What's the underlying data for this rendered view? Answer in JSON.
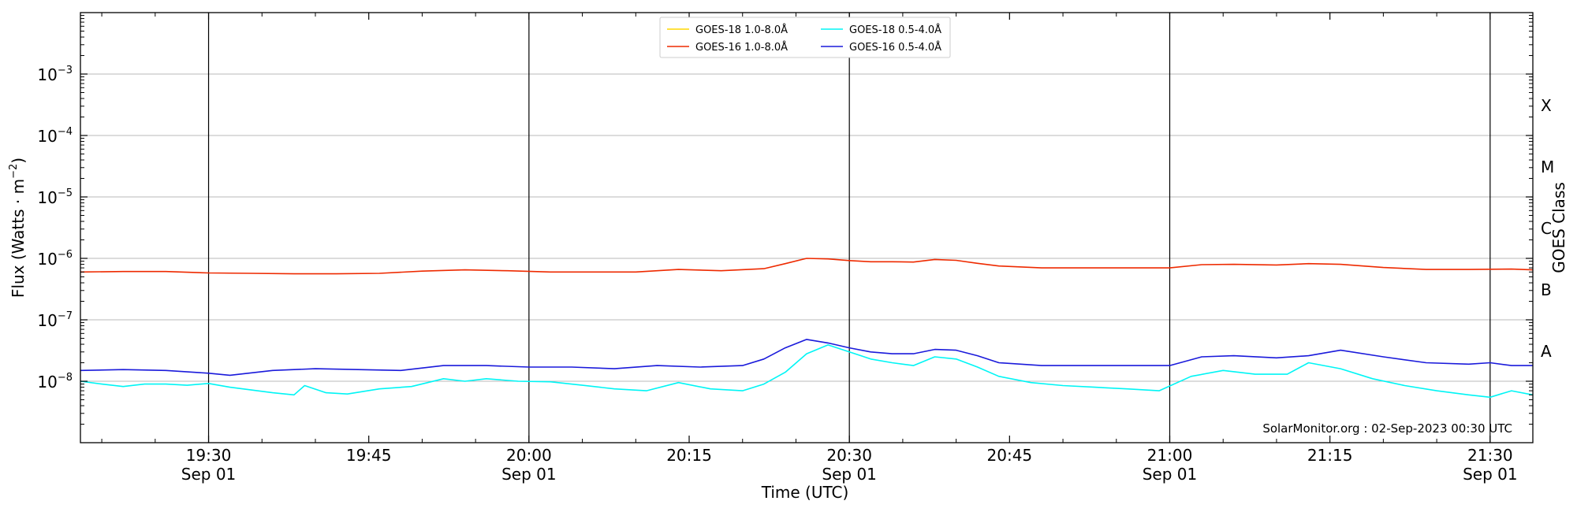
{
  "chart_data": {
    "type": "line",
    "title": "",
    "xlabel": "Time (UTC)",
    "ylabel": "Flux (Watts · m",
    "ylabel_exponent": "−2",
    "y2label": "GOES Class",
    "y_scale": "log",
    "ylim": [
      1e-09,
      0.01
    ],
    "xlim": [
      "2023-09-01 19:18",
      "2023-09-01 21:34"
    ],
    "x_ticks": [
      {
        "time": "2023-09-01 19:30",
        "line1": "19:30",
        "line2": "Sep 01",
        "major": true
      },
      {
        "time": "2023-09-01 19:45",
        "line1": "19:45",
        "line2": "",
        "major": false
      },
      {
        "time": "2023-09-01 20:00",
        "line1": "20:00",
        "line2": "Sep 01",
        "major": true
      },
      {
        "time": "2023-09-01 20:15",
        "line1": "20:15",
        "line2": "",
        "major": false
      },
      {
        "time": "2023-09-01 20:30",
        "line1": "20:30",
        "line2": "Sep 01",
        "major": true
      },
      {
        "time": "2023-09-01 20:45",
        "line1": "20:45",
        "line2": "",
        "major": false
      },
      {
        "time": "2023-09-01 21:00",
        "line1": "21:00",
        "line2": "Sep 01",
        "major": true
      },
      {
        "time": "2023-09-01 21:15",
        "line1": "21:15",
        "line2": "",
        "major": false
      },
      {
        "time": "2023-09-01 21:30",
        "line1": "21:30",
        "line2": "Sep 01",
        "major": true
      }
    ],
    "y_ticks": [
      {
        "value": 1e-08,
        "base": "10",
        "exp": "−8"
      },
      {
        "value": 1e-07,
        "base": "10",
        "exp": "−7"
      },
      {
        "value": 1e-06,
        "base": "10",
        "exp": "−6"
      },
      {
        "value": 1e-05,
        "base": "10",
        "exp": "−5"
      },
      {
        "value": 0.0001,
        "base": "10",
        "exp": "−4"
      },
      {
        "value": 0.001,
        "base": "10",
        "exp": "−3"
      }
    ],
    "goes_classes": [
      {
        "label": "A",
        "value": 1e-08
      },
      {
        "label": "B",
        "value": 1e-07
      },
      {
        "label": "C",
        "value": 1e-06
      },
      {
        "label": "M",
        "value": 1e-05
      },
      {
        "label": "X",
        "value": 0.0001
      }
    ],
    "grid": true,
    "legend_position": "top-center",
    "annotation": "SolarMonitor.org : 02-Sep-2023 00:30 UTC",
    "series": [
      {
        "name": "GOES-18 1.0-8.0Å",
        "color": "#ffd700",
        "x": [],
        "y": []
      },
      {
        "name": "GOES-16 1.0-8.0Å",
        "color": "#ee2a00",
        "x": [
          "2023-09-01 19:18",
          "2023-09-01 19:22",
          "2023-09-01 19:26",
          "2023-09-01 19:30",
          "2023-09-01 19:34",
          "2023-09-01 19:38",
          "2023-09-01 19:42",
          "2023-09-01 19:46",
          "2023-09-01 19:50",
          "2023-09-01 19:54",
          "2023-09-01 19:58",
          "2023-09-01 20:02",
          "2023-09-01 20:06",
          "2023-09-01 20:10",
          "2023-09-01 20:14",
          "2023-09-01 20:18",
          "2023-09-01 20:22",
          "2023-09-01 20:24",
          "2023-09-01 20:26",
          "2023-09-01 20:28",
          "2023-09-01 20:30",
          "2023-09-01 20:32",
          "2023-09-01 20:34",
          "2023-09-01 20:36",
          "2023-09-01 20:38",
          "2023-09-01 20:40",
          "2023-09-01 20:42",
          "2023-09-01 20:44",
          "2023-09-01 20:48",
          "2023-09-01 20:52",
          "2023-09-01 20:56",
          "2023-09-01 21:00",
          "2023-09-01 21:03",
          "2023-09-01 21:06",
          "2023-09-01 21:10",
          "2023-09-01 21:13",
          "2023-09-01 21:16",
          "2023-09-01 21:20",
          "2023-09-01 21:24",
          "2023-09-01 21:28",
          "2023-09-01 21:32",
          "2023-09-01 21:34"
        ],
        "y": [
          6e-07,
          6.1e-07,
          6.1e-07,
          5.8e-07,
          5.7e-07,
          5.6e-07,
          5.6e-07,
          5.7e-07,
          6.2e-07,
          6.5e-07,
          6.3e-07,
          6e-07,
          6e-07,
          6e-07,
          6.6e-07,
          6.3e-07,
          6.8e-07,
          8.2e-07,
          1e-06,
          9.8e-07,
          9.2e-07,
          8.8e-07,
          8.8e-07,
          8.7e-07,
          9.6e-07,
          9.3e-07,
          8.3e-07,
          7.5e-07,
          7e-07,
          7e-07,
          7e-07,
          7e-07,
          7.9e-07,
          8e-07,
          7.8e-07,
          8.2e-07,
          8e-07,
          7.1e-07,
          6.6e-07,
          6.6e-07,
          6.7e-07,
          6.5e-07
        ]
      },
      {
        "name": "GOES-18 0.5-4.0Å",
        "color": "#00f5f5",
        "x": [
          "2023-09-01 19:18",
          "2023-09-01 19:20",
          "2023-09-01 19:22",
          "2023-09-01 19:24",
          "2023-09-01 19:26",
          "2023-09-01 19:28",
          "2023-09-01 19:30",
          "2023-09-01 19:32",
          "2023-09-01 19:34",
          "2023-09-01 19:36",
          "2023-09-01 19:38",
          "2023-09-01 19:39",
          "2023-09-01 19:41",
          "2023-09-01 19:43",
          "2023-09-01 19:46",
          "2023-09-01 19:49",
          "2023-09-01 19:52",
          "2023-09-01 19:54",
          "2023-09-01 19:56",
          "2023-09-01 19:59",
          "2023-09-01 20:02",
          "2023-09-01 20:05",
          "2023-09-01 20:08",
          "2023-09-01 20:11",
          "2023-09-01 20:14",
          "2023-09-01 20:17",
          "2023-09-01 20:20",
          "2023-09-01 20:22",
          "2023-09-01 20:24",
          "2023-09-01 20:26",
          "2023-09-01 20:28",
          "2023-09-01 20:30",
          "2023-09-01 20:32",
          "2023-09-01 20:34",
          "2023-09-01 20:36",
          "2023-09-01 20:38",
          "2023-09-01 20:40",
          "2023-09-01 20:42",
          "2023-09-01 20:44",
          "2023-09-01 20:47",
          "2023-09-01 20:50",
          "2023-09-01 20:53",
          "2023-09-01 20:56",
          "2023-09-01 20:59",
          "2023-09-01 21:02",
          "2023-09-01 21:05",
          "2023-09-01 21:08",
          "2023-09-01 21:11",
          "2023-09-01 21:13",
          "2023-09-01 21:16",
          "2023-09-01 21:19",
          "2023-09-01 21:22",
          "2023-09-01 21:25",
          "2023-09-01 21:28",
          "2023-09-01 21:30",
          "2023-09-01 21:32",
          "2023-09-01 21:34"
        ],
        "y": [
          1e-08,
          9e-09,
          8.2e-09,
          9e-09,
          9e-09,
          8.6e-09,
          9.2e-09,
          8e-09,
          7.2e-09,
          6.5e-09,
          6e-09,
          8.5e-09,
          6.5e-09,
          6.2e-09,
          7.5e-09,
          8.2e-09,
          1.1e-08,
          1e-08,
          1.1e-08,
          1e-08,
          9.8e-09,
          8.6e-09,
          7.5e-09,
          7e-09,
          9.5e-09,
          7.5e-09,
          7e-09,
          9e-09,
          1.4e-08,
          2.8e-08,
          3.9e-08,
          3e-08,
          2.3e-08,
          2e-08,
          1.8e-08,
          2.5e-08,
          2.3e-08,
          1.7e-08,
          1.2e-08,
          9.5e-09,
          8.5e-09,
          8e-09,
          7.5e-09,
          7e-09,
          1.2e-08,
          1.5e-08,
          1.3e-08,
          1.3e-08,
          2e-08,
          1.6e-08,
          1.1e-08,
          8.5e-09,
          7e-09,
          6e-09,
          5.5e-09,
          7e-09,
          6e-09
        ]
      },
      {
        "name": "GOES-16 0.5-4.0Å",
        "color": "#1a1adb",
        "x": [
          "2023-09-01 19:18",
          "2023-09-01 19:22",
          "2023-09-01 19:26",
          "2023-09-01 19:30",
          "2023-09-01 19:32",
          "2023-09-01 19:36",
          "2023-09-01 19:40",
          "2023-09-01 19:44",
          "2023-09-01 19:48",
          "2023-09-01 19:52",
          "2023-09-01 19:56",
          "2023-09-01 20:00",
          "2023-09-01 20:04",
          "2023-09-01 20:08",
          "2023-09-01 20:12",
          "2023-09-01 20:16",
          "2023-09-01 20:20",
          "2023-09-01 20:22",
          "2023-09-01 20:24",
          "2023-09-01 20:26",
          "2023-09-01 20:28",
          "2023-09-01 20:30",
          "2023-09-01 20:32",
          "2023-09-01 20:34",
          "2023-09-01 20:36",
          "2023-09-01 20:38",
          "2023-09-01 20:40",
          "2023-09-01 20:42",
          "2023-09-01 20:44",
          "2023-09-01 20:48",
          "2023-09-01 20:52",
          "2023-09-01 20:56",
          "2023-09-01 21:00",
          "2023-09-01 21:03",
          "2023-09-01 21:06",
          "2023-09-01 21:10",
          "2023-09-01 21:13",
          "2023-09-01 21:16",
          "2023-09-01 21:20",
          "2023-09-01 21:24",
          "2023-09-01 21:28",
          "2023-09-01 21:30",
          "2023-09-01 21:32",
          "2023-09-01 21:34"
        ],
        "y": [
          1.5e-08,
          1.55e-08,
          1.5e-08,
          1.35e-08,
          1.25e-08,
          1.5e-08,
          1.6e-08,
          1.55e-08,
          1.5e-08,
          1.8e-08,
          1.8e-08,
          1.7e-08,
          1.7e-08,
          1.6e-08,
          1.8e-08,
          1.7e-08,
          1.8e-08,
          2.3e-08,
          3.5e-08,
          4.8e-08,
          4.2e-08,
          3.5e-08,
          3e-08,
          2.8e-08,
          2.8e-08,
          3.3e-08,
          3.2e-08,
          2.6e-08,
          2e-08,
          1.8e-08,
          1.8e-08,
          1.8e-08,
          1.8e-08,
          2.5e-08,
          2.6e-08,
          2.4e-08,
          2.6e-08,
          3.2e-08,
          2.5e-08,
          2e-08,
          1.9e-08,
          2e-08,
          1.8e-08,
          1.8e-08
        ]
      }
    ]
  }
}
